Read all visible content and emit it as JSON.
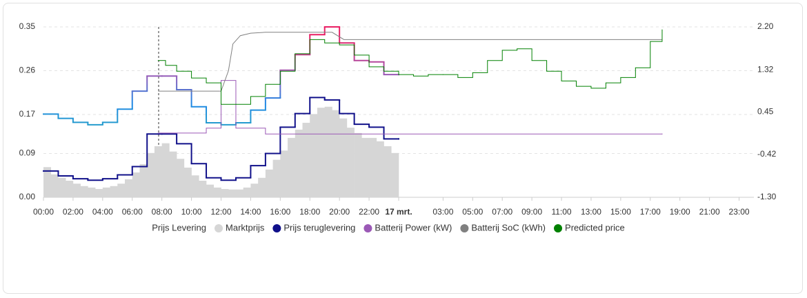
{
  "chart_data": {
    "type": "line",
    "xlim": [
      0,
      48
    ],
    "ylim": [
      0,
      0.35
    ],
    "y2lim": [
      -1.3,
      2.2
    ],
    "grid": true,
    "xticks": [
      {
        "value": 0,
        "label": "00:00"
      },
      {
        "value": 2,
        "label": "02:00"
      },
      {
        "value": 4,
        "label": "04:00"
      },
      {
        "value": 6,
        "label": "06:00"
      },
      {
        "value": 8,
        "label": "08:00"
      },
      {
        "value": 10,
        "label": "10:00"
      },
      {
        "value": 12,
        "label": "12:00"
      },
      {
        "value": 14,
        "label": "14:00"
      },
      {
        "value": 16,
        "label": "16:00"
      },
      {
        "value": 18,
        "label": "18:00"
      },
      {
        "value": 20,
        "label": "20:00"
      },
      {
        "value": 22,
        "label": "22:00"
      },
      {
        "value": 24,
        "label": "17 mrt.",
        "bold": true
      },
      {
        "value": 27,
        "label": "03:00"
      },
      {
        "value": 29,
        "label": "05:00"
      },
      {
        "value": 31,
        "label": "07:00"
      },
      {
        "value": 33,
        "label": "09:00"
      },
      {
        "value": 35,
        "label": "11:00"
      },
      {
        "value": 37,
        "label": "13:00"
      },
      {
        "value": 39,
        "label": "15:00"
      },
      {
        "value": 41,
        "label": "17:00"
      },
      {
        "value": 43,
        "label": "19:00"
      },
      {
        "value": 45,
        "label": "21:00"
      },
      {
        "value": 47,
        "label": "23:00"
      }
    ],
    "yticks": [
      {
        "value": 0,
        "label": "0.00"
      },
      0.09,
      0.17,
      0.26,
      0.35
    ],
    "y2ticks": [
      {
        "value": -1.3,
        "label": "-1.30"
      },
      -0.42,
      0.45,
      1.32,
      {
        "value": 2.2,
        "label": "2.20"
      }
    ],
    "series": [
      {
        "name": "Prijs Levering",
        "type": "step",
        "colors": [
          "#e91e63",
          "#9b59b6",
          "#1e88e5",
          "#26a0c8"
        ],
        "x": [
          0,
          1,
          2,
          3,
          4,
          5,
          6,
          7,
          8,
          9,
          10,
          11,
          12,
          13,
          14,
          15,
          16,
          17,
          18,
          19,
          20,
          21,
          22,
          23,
          24
        ],
        "values": [
          0.171,
          0.162,
          0.154,
          0.149,
          0.154,
          0.181,
          0.218,
          0.249,
          0.249,
          0.221,
          0.186,
          0.153,
          0.149,
          0.153,
          0.179,
          0.204,
          0.261,
          0.293,
          0.334,
          0.35,
          0.317,
          0.281,
          0.278,
          0.252,
          0.252
        ]
      },
      {
        "name": "Marktprijs",
        "type": "column",
        "color": "#d6d6d6",
        "x": [
          0,
          0.5,
          1,
          1.5,
          2,
          2.5,
          3,
          3.5,
          4,
          4.5,
          5,
          5.5,
          6,
          6.5,
          7,
          7.5,
          8,
          8.5,
          9,
          9.5,
          10,
          10.5,
          11,
          11.5,
          12,
          12.5,
          13,
          13.5,
          14,
          14.5,
          15,
          15.5,
          16,
          16.5,
          17,
          17.5,
          18,
          18.5,
          19,
          19.5,
          20,
          20.5,
          21,
          21.5,
          22,
          22.5,
          23,
          23.5
        ],
        "values": [
          0.062,
          0.047,
          0.04,
          0.034,
          0.028,
          0.023,
          0.02,
          0.017,
          0.02,
          0.023,
          0.028,
          0.037,
          0.051,
          0.068,
          0.091,
          0.105,
          0.111,
          0.094,
          0.079,
          0.061,
          0.045,
          0.034,
          0.026,
          0.02,
          0.017,
          0.016,
          0.016,
          0.02,
          0.028,
          0.04,
          0.057,
          0.077,
          0.096,
          0.122,
          0.139,
          0.153,
          0.171,
          0.184,
          0.186,
          0.179,
          0.162,
          0.143,
          0.132,
          0.122,
          0.122,
          0.115,
          0.105,
          0.091
        ]
      },
      {
        "name": "Prijs teruglevering",
        "type": "step",
        "color": "#10108a",
        "x": [
          0,
          1,
          2,
          3,
          4,
          5,
          6,
          7,
          8,
          9,
          10,
          11,
          12,
          13,
          14,
          15,
          16,
          17,
          18,
          19,
          20,
          21,
          22,
          23,
          24
        ],
        "values": [
          0.054,
          0.044,
          0.038,
          0.035,
          0.038,
          0.046,
          0.063,
          0.13,
          0.13,
          0.11,
          0.069,
          0.04,
          0.035,
          0.04,
          0.065,
          0.09,
          0.144,
          0.172,
          0.205,
          0.2,
          0.172,
          0.15,
          0.144,
          0.12,
          0.12
        ]
      },
      {
        "name": "Batterij Power (kW)",
        "type": "step",
        "color": "#9b59b6",
        "axis": "y2",
        "x": [
          7.75,
          11,
          12,
          13,
          15,
          41.8
        ],
        "values": [
          0.02,
          0.12,
          1.1,
          0.12,
          0.0,
          0.0
        ]
      },
      {
        "name": "Batterij SoC (kWh)",
        "type": "line",
        "color": "#808080",
        "axis": "y2",
        "x": [
          7.75,
          12,
          12.5,
          12.8,
          13.3,
          14,
          15,
          19.5,
          20.3,
          41.8
        ],
        "values": [
          0.88,
          0.88,
          1.3,
          1.85,
          2.02,
          2.07,
          2.09,
          2.09,
          1.94,
          1.94
        ]
      },
      {
        "name": "Predicted price",
        "type": "step",
        "color": "#008000",
        "x": [
          7.75,
          8.25,
          9,
          10,
          11,
          12,
          13,
          14,
          15,
          16,
          17,
          18,
          19,
          20,
          21,
          22,
          23,
          24,
          25,
          26,
          27,
          28,
          29,
          30,
          31,
          32,
          33,
          34,
          35,
          36,
          37,
          38,
          39,
          40,
          41,
          41.8
        ],
        "values": [
          0.281,
          0.271,
          0.259,
          0.245,
          0.235,
          0.191,
          0.191,
          0.207,
          0.232,
          0.259,
          0.295,
          0.324,
          0.317,
          0.313,
          0.292,
          0.268,
          0.259,
          0.252,
          0.249,
          0.252,
          0.252,
          0.246,
          0.256,
          0.281,
          0.302,
          0.305,
          0.281,
          0.259,
          0.239,
          0.228,
          0.224,
          0.235,
          0.246,
          0.266,
          0.32,
          0.344
        ]
      }
    ]
  }
}
